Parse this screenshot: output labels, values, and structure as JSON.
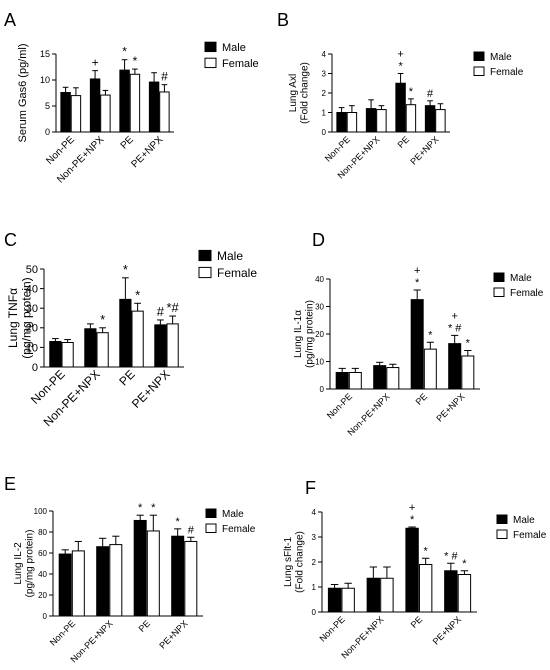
{
  "colors": {
    "male": "#000000",
    "female": "#ffffff",
    "stroke": "#000000"
  },
  "chart_data": [
    {
      "panel": "A",
      "type": "bar",
      "ylabel": "Serum Gas6 (pg/ml)",
      "ylim": [
        0,
        15
      ],
      "yticks": [
        0,
        5,
        10,
        15
      ],
      "categories": [
        "Non-PE",
        "Non-PE+NPX",
        "PE",
        "PE+NPX"
      ],
      "series": [
        {
          "name": "Male",
          "values": [
            7.6,
            10.2,
            11.9,
            9.6
          ],
          "errors": [
            1.0,
            1.6,
            2.0,
            1.8
          ]
        },
        {
          "name": "Female",
          "values": [
            7.0,
            7.1,
            11.1,
            7.7
          ],
          "errors": [
            1.5,
            0.9,
            1.0,
            1.4
          ]
        }
      ],
      "annotations": [
        {
          "cat": 1,
          "series": 0,
          "text": "+"
        },
        {
          "cat": 2,
          "series": 0,
          "text": "*"
        },
        {
          "cat": 2,
          "series": 1,
          "text": "*"
        },
        {
          "cat": 3,
          "series": 1,
          "text": "#"
        }
      ]
    },
    {
      "panel": "B",
      "type": "bar",
      "ylabel": "Lung Axl\n(Fold change)",
      "ylim": [
        0,
        4
      ],
      "yticks": [
        0,
        1,
        2,
        3,
        4
      ],
      "categories": [
        "Non-PE",
        "Non-PE+NPX",
        "PE",
        "PE+NPX"
      ],
      "series": [
        {
          "name": "Male",
          "values": [
            1.0,
            1.2,
            2.5,
            1.35
          ],
          "errors": [
            0.25,
            0.45,
            0.5,
            0.25
          ]
        },
        {
          "name": "Female",
          "values": [
            1.0,
            1.15,
            1.4,
            1.15
          ],
          "errors": [
            0.35,
            0.2,
            0.3,
            0.3
          ]
        }
      ],
      "annotations": [
        {
          "cat": 2,
          "series": 0,
          "text": "+\n*"
        },
        {
          "cat": 2,
          "series": 1,
          "text": "*"
        },
        {
          "cat": 3,
          "series": 0,
          "text": "#"
        }
      ]
    },
    {
      "panel": "C",
      "type": "bar",
      "ylabel": "Lung TNFα\n(pg/mg protein)",
      "ylim": [
        0,
        50
      ],
      "yticks": [
        0,
        10,
        20,
        30,
        40,
        50
      ],
      "categories": [
        "Non-PE",
        "Non-PE+NPX",
        "PE",
        "PE+NPX"
      ],
      "series": [
        {
          "name": "Male",
          "values": [
            13,
            19.5,
            34.5,
            21.5
          ],
          "errors": [
            1.5,
            2.5,
            11,
            2.5
          ]
        },
        {
          "name": "Female",
          "values": [
            12.5,
            17.5,
            28.5,
            22
          ],
          "errors": [
            1.5,
            2.5,
            4,
            4
          ]
        }
      ],
      "annotations": [
        {
          "cat": 1,
          "series": 1,
          "text": "*"
        },
        {
          "cat": 2,
          "series": 0,
          "text": "*"
        },
        {
          "cat": 2,
          "series": 1,
          "text": "*"
        },
        {
          "cat": 3,
          "series": 0,
          "text": "#"
        },
        {
          "cat": 3,
          "series": 1,
          "text": "*#"
        }
      ]
    },
    {
      "panel": "D",
      "type": "bar",
      "ylabel": "Lung IL-1α\n(pg/mg protein)",
      "ylim": [
        0,
        40
      ],
      "yticks": [
        0,
        10,
        20,
        30,
        40
      ],
      "categories": [
        "Non-PE",
        "Non-PE+NPX",
        "PE",
        "PE+NPX"
      ],
      "series": [
        {
          "name": "Male",
          "values": [
            6,
            8.5,
            32.5,
            16.5
          ],
          "errors": [
            1.5,
            1.2,
            3.5,
            3
          ]
        },
        {
          "name": "Female",
          "values": [
            6,
            7.8,
            14.5,
            12
          ],
          "errors": [
            1.5,
            1.2,
            2.5,
            2
          ]
        }
      ],
      "annotations": [
        {
          "cat": 2,
          "series": 0,
          "text": "+\n*"
        },
        {
          "cat": 2,
          "series": 1,
          "text": "*"
        },
        {
          "cat": 3,
          "series": 0,
          "text": "+\n* #"
        },
        {
          "cat": 3,
          "series": 1,
          "text": "*"
        }
      ]
    },
    {
      "panel": "E",
      "type": "bar",
      "ylabel": "Lung IL-2\n(pg/mg protein)",
      "ylim": [
        0,
        100
      ],
      "yticks": [
        0,
        20,
        40,
        60,
        80,
        100
      ],
      "categories": [
        "Non-PE",
        "Non-PE+NPX",
        "PE",
        "PE+NPX"
      ],
      "series": [
        {
          "name": "Male",
          "values": [
            59,
            66,
            91,
            76
          ],
          "errors": [
            4,
            8,
            5,
            7
          ]
        },
        {
          "name": "Female",
          "values": [
            62,
            68,
            81,
            71
          ],
          "errors": [
            9,
            8,
            15,
            4
          ]
        }
      ],
      "annotations": [
        {
          "cat": 2,
          "series": 0,
          "text": "*"
        },
        {
          "cat": 2,
          "series": 1,
          "text": "*"
        },
        {
          "cat": 3,
          "series": 0,
          "text": "*"
        },
        {
          "cat": 3,
          "series": 1,
          "text": "#"
        }
      ]
    },
    {
      "panel": "F",
      "type": "bar",
      "ylabel": "Lung sFlt-1\n(Fold change)",
      "ylim": [
        0,
        4
      ],
      "yticks": [
        0,
        1,
        2,
        3,
        4
      ],
      "categories": [
        "Non-PE",
        "Non-PE+NPX",
        "PE",
        "PE+NPX"
      ],
      "series": [
        {
          "name": "Male",
          "values": [
            0.95,
            1.35,
            3.35,
            1.65
          ],
          "errors": [
            0.15,
            0.45,
            0.05,
            0.3
          ]
        },
        {
          "name": "Female",
          "values": [
            0.95,
            1.35,
            1.9,
            1.5
          ],
          "errors": [
            0.2,
            0.45,
            0.25,
            0.15
          ]
        }
      ],
      "annotations": [
        {
          "cat": 2,
          "series": 0,
          "text": "+\n*"
        },
        {
          "cat": 2,
          "series": 1,
          "text": "*"
        },
        {
          "cat": 3,
          "series": 0,
          "text": "* #"
        },
        {
          "cat": 3,
          "series": 1,
          "text": "*"
        }
      ]
    }
  ]
}
